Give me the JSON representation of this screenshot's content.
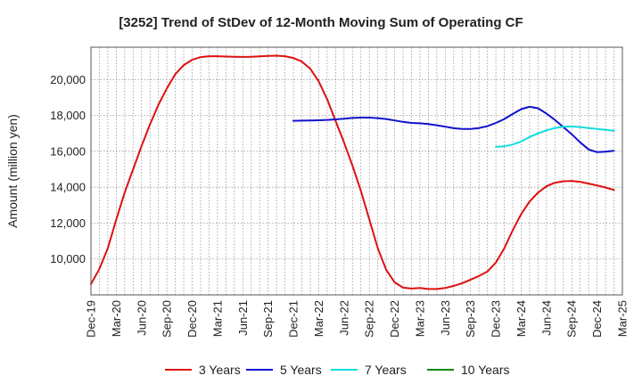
{
  "chart_data": {
    "type": "line",
    "title": "[3252]  Trend of StDev of 12-Month Moving Sum of Operating CF",
    "ylabel": "Amount (million yen)",
    "xlabel": "",
    "x_ticks": [
      "Dec-19",
      "Mar-20",
      "Jun-20",
      "Sep-20",
      "Dec-20",
      "Mar-21",
      "Jun-21",
      "Sep-21",
      "Dec-21",
      "Mar-22",
      "Jun-22",
      "Sep-22",
      "Dec-22",
      "Mar-23",
      "Jun-23",
      "Sep-23",
      "Dec-23",
      "Mar-24",
      "Jun-24",
      "Sep-24",
      "Dec-24",
      "Mar-25"
    ],
    "y_ticks": [
      "10,000",
      "12,000",
      "14,000",
      "16,000",
      "18,000",
      "20,000"
    ],
    "y_tick_values": [
      10000,
      12000,
      14000,
      16000,
      18000,
      20000
    ],
    "ylim": [
      8000,
      21800
    ],
    "grid": true,
    "legend_position": "bottom",
    "series": [
      {
        "name": "3 Years",
        "color": "#dd1111",
        "start_index": 0,
        "values": [
          8600,
          9450,
          10600,
          12200,
          13700,
          15000,
          16300,
          17500,
          18600,
          19500,
          20300,
          20800,
          21100,
          21250,
          21300,
          21300,
          21280,
          21270,
          21260,
          21270,
          21290,
          21320,
          21330,
          21300,
          21200,
          21000,
          20600,
          19900,
          18900,
          17700,
          16500,
          15200,
          13800,
          12200,
          10600,
          9400,
          8700,
          8400,
          8350,
          8380,
          8330,
          8330,
          8380,
          8500,
          8650,
          8850,
          9050,
          9300,
          9800,
          10600,
          11600,
          12500,
          13200,
          13700,
          14050,
          14250,
          14330,
          14350,
          14300,
          14200,
          14100,
          13980,
          13850
        ]
      },
      {
        "name": "5 Years",
        "color": "#1111cc",
        "start_index": 24,
        "values": [
          17700,
          17710,
          17720,
          17730,
          17750,
          17780,
          17820,
          17860,
          17880,
          17880,
          17850,
          17800,
          17720,
          17640,
          17580,
          17560,
          17520,
          17450,
          17370,
          17290,
          17250,
          17250,
          17300,
          17400,
          17580,
          17800,
          18080,
          18350,
          18480,
          18400,
          18100,
          17750,
          17350,
          16950,
          16500,
          16100,
          15950,
          15980,
          16030
        ]
      },
      {
        "name": "7 Years",
        "color": "#11dddd",
        "start_index": 48,
        "values": [
          16250,
          16280,
          16380,
          16550,
          16800,
          17000,
          17170,
          17300,
          17370,
          17380,
          17350,
          17300,
          17250,
          17200,
          17150
        ]
      },
      {
        "name": "10 Years",
        "color": "#118811",
        "start_index": 62,
        "values": []
      }
    ]
  }
}
